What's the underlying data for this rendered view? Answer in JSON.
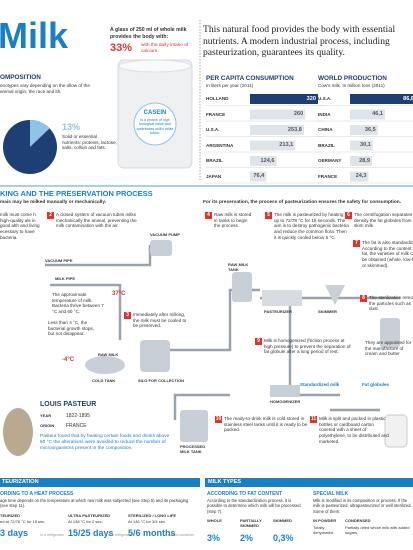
{
  "header": {
    "title": "Milk",
    "glass_note": "A glass of 250 ml of whole milk provides the body with:",
    "glass_percent": "33%",
    "glass_percent_note": "with the daily intake of calcium.",
    "intro": "This natural food provides the body with essential nutrients. A modern industrial process, including pasteurization, guarantees its quality."
  },
  "casein": {
    "title": "CASEIN",
    "text": "Is a protein of high biological value and contributes milk's white colour."
  },
  "composition": {
    "title": "OMPOSITION",
    "text": "enotypes vary depending on the ollow of the animal origin, the race and ith.",
    "left_label": "6",
    "percent": "13%",
    "text2": "Solid or essential nutrients: proteins, lactose, salts, colloin and fats."
  },
  "consumption": {
    "title": "PER CAPITA CONSUMPTION",
    "subtitle": "In liters per year (2011)",
    "rows": [
      {
        "label": "HOLLAND",
        "value": 320
      },
      {
        "label": "FRANCE",
        "value": 260
      },
      {
        "label": "U.S.A.",
        "value": 253.8,
        "value_label": "253,8"
      },
      {
        "label": "ARGENTINA",
        "value": 213.1,
        "value_label": "213,1"
      },
      {
        "label": "BRAZIL",
        "value": 124.6,
        "value_label": "124,6"
      },
      {
        "label": "JAPAN",
        "value": 76.4,
        "value_label": "76,4"
      }
    ]
  },
  "production": {
    "title": "WORLD PRODUCTION",
    "subtitle": "Cow's milk. In million tons (2011)",
    "rows": [
      {
        "label": "U.S.A.",
        "value": 86.8,
        "value_label": "86,8"
      },
      {
        "label": "INDIA",
        "value": 46.1,
        "value_label": "46,1"
      },
      {
        "label": "CHINA",
        "value": 36.5,
        "value_label": "36,5"
      },
      {
        "label": "BRAZIL",
        "value": 30.1,
        "value_label": "30,1"
      },
      {
        "label": "GERMANY",
        "value": 28.9,
        "value_label": "28,9"
      },
      {
        "label": "FRANCE",
        "value": 24.3,
        "value_label": "24,3"
      }
    ]
  },
  "process": {
    "title": "KING AND THE PRESERVATION PROCESS",
    "left_note": "mais may be milked manually or mechanically.",
    "right_note": "For its preservation, the process of pasteurization ensures the safety for consumption.",
    "steps": [
      {
        "num": 1,
        "text": "milk must come h high-quality als in good alth and living ecessary to have bacteria."
      },
      {
        "num": 2,
        "text": "A closed system of vacuum tubes milks mechanically the animal, preventing the milk contamination with the air."
      },
      {
        "num": 3,
        "text": "Immediately after milking, the milk must be cooled to be preserved."
      },
      {
        "num": 4,
        "text": "Raw milk is stored in tanks to begin the process."
      },
      {
        "num": 5,
        "text": "The milk is pasteurized by heating up to 72/78 °C for 15 seconds. The aim is to destroy pathogenic bacteria and reduce the common flora. Then it is quickly cooled below 5 °C."
      },
      {
        "num": 6,
        "text": "The centrifugation separates by density the fat globules from the skim milk."
      },
      {
        "num": 7,
        "text": "The fat is also standardized. According to the content of fat, the varieties of milk can be obtained (whole, low-fat or skimmed)."
      },
      {
        "num": 8,
        "text": "The sterilization removes the particles such as dust."
      },
      {
        "num": 9,
        "text": "Milk is homogenized (friction process at high pressure) to prevent the separation of fat globule after a long period of rest."
      },
      {
        "num": 10,
        "text": "The ready-to-drink milk is cold stored in stainless steel tanks until it is ready to be packed."
      },
      {
        "num": 11,
        "text": "Milk is split and packed in plastic bottles or cardboard carton covered with a sheet of polyethylene, to be distributed and marketed."
      }
    ],
    "labels": {
      "vacuum_pipe": "VACUUM PIPE",
      "vacuum_pump": "VACUUM PUMP",
      "milk_pipe": "MILK PIPE",
      "temp_hot": "37°C",
      "temp_note": "The approximate temperature of milk. Bacteria thrive between 7 °C and 60 °C.",
      "cold_note": "Less than 4 °C, the bacterial growth stops, but not disappear.",
      "temp_cold": "-4°C",
      "raw_milk": "RAW MILK",
      "cold_tank": "COLD TANK",
      "silo": "SILO FOR COLLECTION",
      "raw_tank": "RAW MILK TANK",
      "pasteurizer": "PASTEURIZER",
      "skimmer": "SKIMMER",
      "homogenizer": "HOMOGENIZER",
      "processed_tank": "PROCESSED MILK TANK",
      "standardized": "Standardized milk",
      "fat": "Fat globules",
      "cream": "They are appointed for the manufacture of cream and butter"
    }
  },
  "pasteur": {
    "name": "LOUIS PASTEUR",
    "year_label": "YEAR",
    "year": "1822-1895",
    "origin_label": "ORIGIN",
    "origin": "FRANCE",
    "text": "Pasteur found that by heating certain foods and drinks above 60 °C the alterations were avoided to reduce the number of microorganisms present in the composition."
  },
  "bottom": {
    "left_title": "TEURIZATION",
    "right_title": "MILK TYPES",
    "heat": {
      "title": "ORDING TO A HEAT PROCESS",
      "text": "age time depends on the temperature at which raw milk was subjected (see Step 5) and its packaging (see step 11).",
      "columns": [
        {
          "name": "TEURIZED",
          "detail": "ed at 72/78 °C for 15 sec.",
          "time": "3 days",
          "note": "in a refrigerator"
        },
        {
          "name": "ULTRA PASTEURIZED",
          "detail": "At 138 °C for 2 sec.",
          "time": "15/25 days",
          "note": "in a refrigerator"
        },
        {
          "name": "STERILIZED / LONG LIFE",
          "detail": "At 146 °C for 3/4 sec.",
          "time": "5/6 months",
          "note": "closed container"
        }
      ]
    },
    "fat": {
      "title": "ACCORDING TO FAT CONTENT",
      "text": "According to the standardization process, it is possible to determine which milk will be processed (step 7).",
      "columns": [
        {
          "name": "WHOLE",
          "value": "3%"
        },
        {
          "name": "PARTIALLY SKIMMED",
          "value": "2%"
        },
        {
          "name": "SKIMMED",
          "value": "0,3%"
        }
      ]
    },
    "special": {
      "title": "SPECIAL MILK",
      "text": "Milk is modified in its composition or process. If the milk is pasteurized, ultrapasteurized or well sterilized. Some of them:",
      "columns": [
        {
          "name": "IN POWDER",
          "text": "Totally dehydrated."
        },
        {
          "name": "CONDENSED",
          "text": "Partially dried whole milk with added sugars."
        }
      ]
    }
  }
}
